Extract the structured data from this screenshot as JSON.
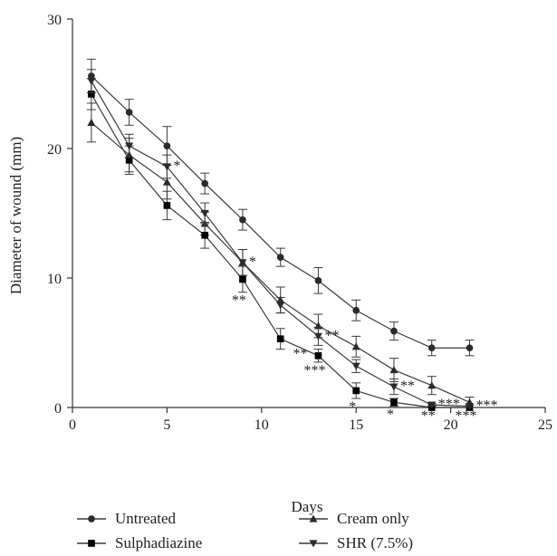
{
  "chart_data": {
    "type": "line",
    "xlabel": "Days",
    "ylabel": "Diameter of wound (mm)",
    "xlim": [
      0,
      25
    ],
    "ylim": [
      0,
      30
    ],
    "xticks": [
      0,
      5,
      10,
      15,
      20,
      25
    ],
    "yticks": [
      0,
      10,
      20,
      30
    ],
    "grid": false,
    "legend_position": "bottom",
    "x": [
      1,
      3,
      5,
      7,
      9,
      11,
      13,
      15,
      17,
      19,
      21
    ],
    "series": [
      {
        "name": "Untreated",
        "marker": "circle",
        "values": [
          25.6,
          22.8,
          20.2,
          17.3,
          14.5,
          11.6,
          9.8,
          7.5,
          5.9,
          4.6,
          4.6
        ],
        "errors": [
          1.3,
          1.0,
          1.5,
          0.8,
          0.8,
          0.7,
          1.0,
          0.8,
          0.7,
          0.6,
          0.6
        ],
        "annotations": []
      },
      {
        "name": "Cream only",
        "marker": "triangle-up",
        "values": [
          22.0,
          19.5,
          17.4,
          14.2,
          11.2,
          8.3,
          6.3,
          4.7,
          2.9,
          1.7,
          0.4
        ],
        "errors": [
          1.5,
          1.3,
          1.3,
          0.9,
          1.0,
          1.0,
          0.9,
          0.8,
          0.9,
          0.7,
          0.4
        ],
        "annotations": []
      },
      {
        "name": "Sulphadiazine",
        "marker": "square",
        "values": [
          24.2,
          19.1,
          15.6,
          13.3,
          9.9,
          5.3,
          4.0,
          1.3,
          0.4,
          0.0,
          0.0
        ],
        "errors": [
          1.2,
          1.1,
          1.1,
          1.0,
          1.0,
          0.8,
          0.5,
          0.6,
          0.3,
          0.0,
          0.0
        ],
        "annotations": [
          {
            "x": 9,
            "text": "**"
          },
          {
            "x": 13,
            "text": "***"
          },
          {
            "x": 15,
            "text": "*"
          },
          {
            "x": 17,
            "text": "*"
          },
          {
            "x": 19,
            "text": "**"
          },
          {
            "x": 21,
            "text": "***"
          }
        ]
      },
      {
        "name": "SHR (7.5%)",
        "marker": "triangle-down",
        "values": [
          25.2,
          20.2,
          18.6,
          15.0,
          11.2,
          7.9,
          5.5,
          3.2,
          1.6,
          0.2,
          0.1
        ],
        "errors": [
          0.9,
          0.9,
          0.9,
          0.8,
          1.0,
          0.6,
          0.7,
          0.5,
          0.6,
          0.1,
          0.1
        ],
        "annotations": [
          {
            "x": 5,
            "text": "*"
          },
          {
            "x": 9,
            "text": "*"
          },
          {
            "x": 13,
            "text": "**"
          },
          {
            "x": 13,
            "text": "**"
          },
          {
            "x": 17,
            "text": "**"
          },
          {
            "x": 19,
            "text": "***"
          },
          {
            "x": 21,
            "text": "***"
          }
        ]
      }
    ]
  }
}
